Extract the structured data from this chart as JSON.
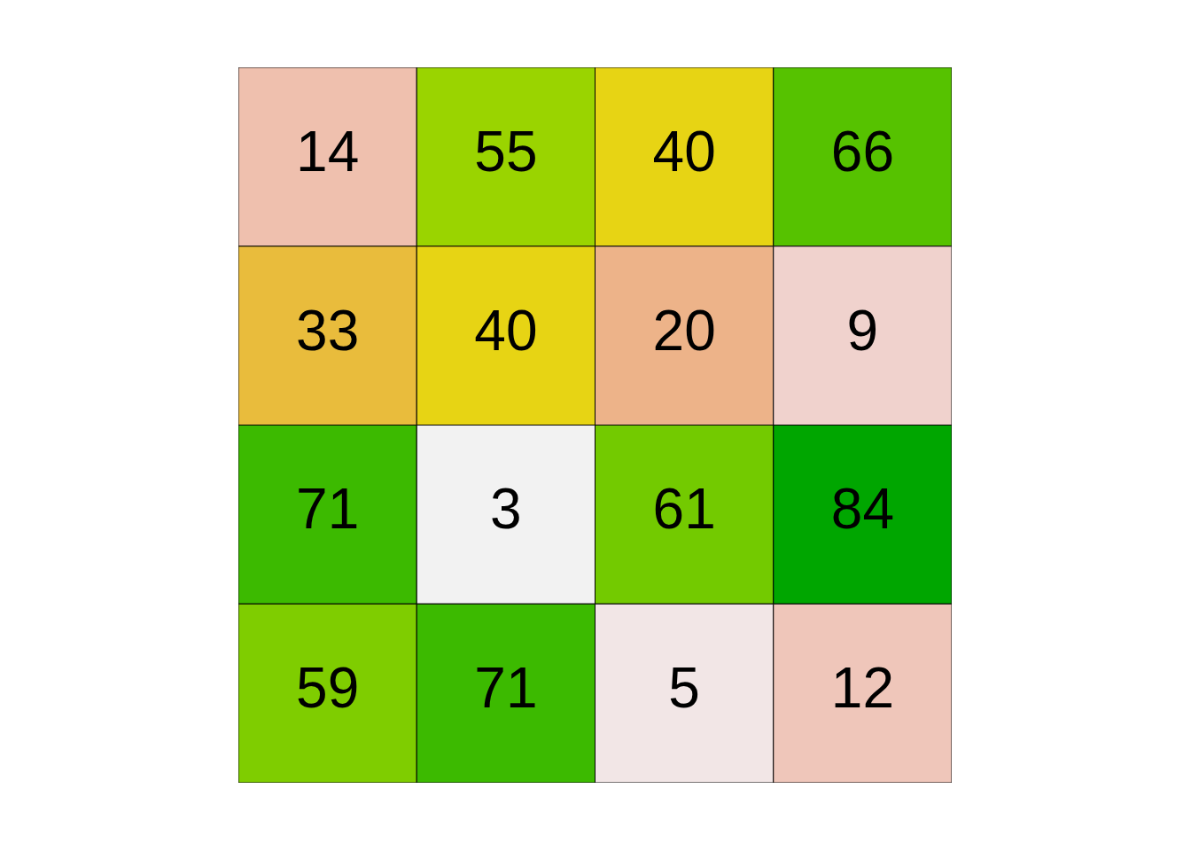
{
  "chart_data": {
    "type": "heatmap",
    "categories": [
      null,
      null,
      null,
      null
    ],
    "y_categories": [
      null,
      null,
      null,
      null
    ],
    "cells": [
      [
        14,
        55,
        40,
        66
      ],
      [
        33,
        40,
        20,
        9
      ],
      [
        71,
        3,
        61,
        84
      ],
      [
        59,
        71,
        5,
        12
      ]
    ],
    "colors": [
      [
        "#EFC0AE",
        "#9AD400",
        "#E7D414",
        "#56C200"
      ],
      [
        "#E9BC3C",
        "#E7D414",
        "#EDB389",
        "#F0D2CD"
      ],
      [
        "#3CBA00",
        "#F2F2F2",
        "#73CA00",
        "#00A600"
      ],
      [
        "#7FCD00",
        "#3CBA00",
        "#F2E6E6",
        "#EFC6BA"
      ]
    ],
    "data_labels": true
  }
}
